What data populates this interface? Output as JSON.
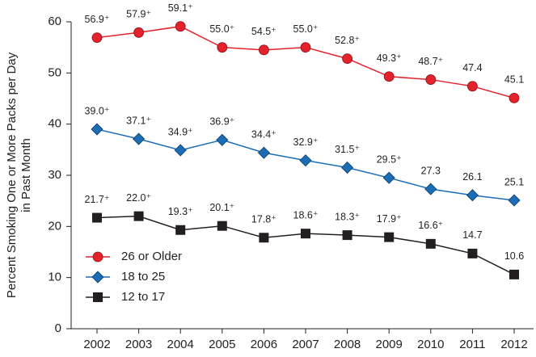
{
  "chart_data": {
    "type": "line",
    "ylabel": [
      "Percent Smoking One or More Packs per Day",
      "in Past Month"
    ],
    "categories": [
      "2002",
      "2003",
      "2004",
      "2005",
      "2006",
      "2007",
      "2008",
      "2009",
      "2010",
      "2011",
      "2012"
    ],
    "series": [
      {
        "name": "26 or Older",
        "color": "#e3222b",
        "marker": "circle",
        "values": [
          56.9,
          57.9,
          59.1,
          55.0,
          54.5,
          55.0,
          52.8,
          49.3,
          48.7,
          47.4,
          45.1
        ],
        "value_labels": [
          "56.9⁺",
          "57.9⁺",
          "59.1⁺",
          "55.0⁺",
          "54.5⁺",
          "55.0⁺",
          "52.8⁺",
          "49.3⁺",
          "48.7⁺",
          "47.4",
          "45.1"
        ]
      },
      {
        "name": "18 to 25",
        "color": "#1b6db5",
        "marker": "diamond",
        "values": [
          39.0,
          37.1,
          34.9,
          36.9,
          34.4,
          32.9,
          31.5,
          29.5,
          27.3,
          26.1,
          25.1
        ],
        "value_labels": [
          "39.0⁺",
          "37.1⁺",
          "34.9⁺",
          "36.9⁺",
          "34.4⁺",
          "32.9⁺",
          "31.5⁺",
          "29.5⁺",
          "27.3",
          "26.1",
          "25.1"
        ]
      },
      {
        "name": "12 to 17",
        "color": "#231f20",
        "marker": "square",
        "values": [
          21.7,
          22.0,
          19.3,
          20.1,
          17.8,
          18.6,
          18.3,
          17.9,
          16.6,
          14.7,
          10.6
        ],
        "value_labels": [
          "21.7⁺",
          "22.0⁺",
          "19.3⁺",
          "20.1⁺",
          "17.8⁺",
          "18.6⁺",
          "18.3⁺",
          "17.9⁺",
          "16.6⁺",
          "14.7",
          "10.6"
        ]
      }
    ],
    "ylim": [
      0,
      60
    ],
    "yticks": [
      0,
      10,
      20,
      30,
      40,
      50,
      60
    ],
    "grid": false,
    "legend": "lower left"
  }
}
